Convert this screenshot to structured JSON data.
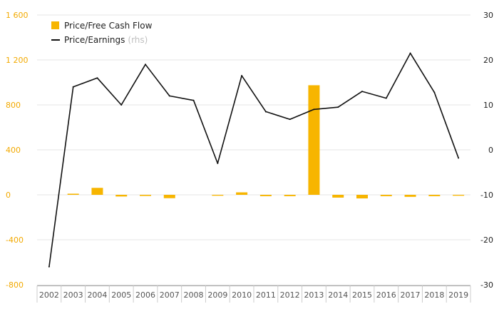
{
  "chart_data": {
    "type": "bar+line",
    "categories": [
      "2002",
      "2003",
      "2004",
      "2005",
      "2006",
      "2007",
      "2008",
      "2009",
      "2010",
      "2011",
      "2012",
      "2013",
      "2014",
      "2015",
      "2016",
      "2017",
      "2018",
      "2019"
    ],
    "series": [
      {
        "name": "Price/Free Cash Flow",
        "type": "bar",
        "axis": "left",
        "color": "#f7b500",
        "values": [
          0,
          10,
          62,
          -15,
          -10,
          -30,
          0,
          -8,
          22,
          -12,
          -12,
          975,
          -25,
          -32,
          -12,
          -18,
          -12,
          -8
        ]
      },
      {
        "name": "Price/Earnings",
        "name_suffix": "(rhs)",
        "type": "line",
        "axis": "right",
        "color": "#111111",
        "values": [
          -26,
          14,
          16,
          10,
          19,
          12,
          11,
          -3,
          16.5,
          8.5,
          6.8,
          9,
          9.5,
          13,
          11.5,
          21.5,
          12.8,
          -1.8
        ]
      }
    ],
    "y_left": {
      "ticks": [
        -800,
        -400,
        0,
        400,
        800,
        1200,
        1600
      ],
      "tick_labels": [
        "-800",
        "-400",
        "0",
        "400",
        "800",
        "1 200",
        "1 600"
      ],
      "ylim": [
        -800,
        1600
      ],
      "color": "#f2a900"
    },
    "y_right": {
      "ticks": [
        -30,
        -20,
        -10,
        0,
        10,
        20,
        30
      ],
      "tick_labels": [
        "-30",
        "-20",
        "-10",
        "0",
        "10",
        "20",
        "30"
      ],
      "ylim": [
        -30,
        30
      ]
    },
    "grid": "horizontal",
    "legend_position": "top-left"
  }
}
